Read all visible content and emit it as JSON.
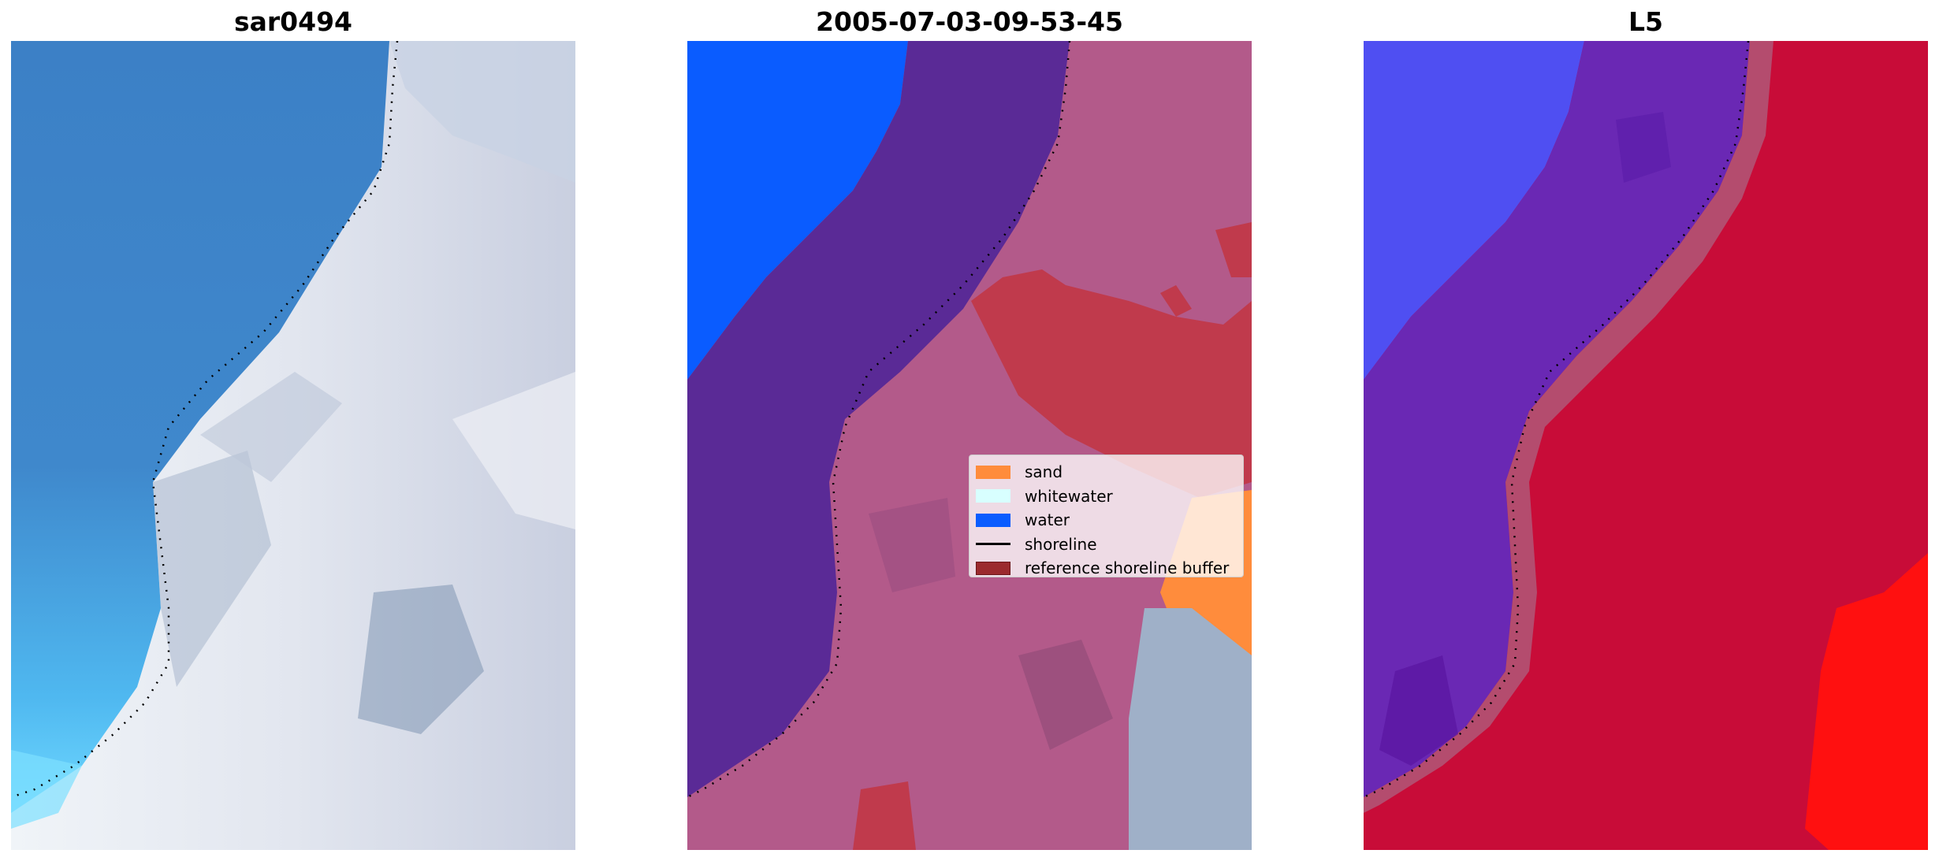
{
  "panels": [
    {
      "title": "sar0494"
    },
    {
      "title": "2005-07-03-09-53-45"
    },
    {
      "title": "L5"
    }
  ],
  "legend": {
    "placement": "center-right of middle panel",
    "items": [
      {
        "label": "sand",
        "color": "#ff8c3c",
        "kind": "patch"
      },
      {
        "label": "whitewater",
        "color": "#d8ffff",
        "kind": "patch"
      },
      {
        "label": "water",
        "color": "#0a5cff",
        "kind": "patch"
      },
      {
        "label": "shoreline",
        "color": "#000000",
        "kind": "line"
      },
      {
        "label": "reference shoreline buffer",
        "color": "#9b2a2e",
        "kind": "patch"
      }
    ]
  },
  "colors": {
    "rgb_water": "#3f86c8",
    "rgb_foam": "#dfe6f0",
    "class_water": "#0a5cff",
    "class_buffer_overlay": "#5a2a96",
    "class_land_overlay": "#b35a8a",
    "class_buffer_red": "#c03a4c",
    "class_sand": "#ff8c3c",
    "l5_blue": "#4f4ff2",
    "l5_purple": "#6a28b4",
    "l5_red": "#c80c38",
    "l5_bright_red": "#ff1010"
  }
}
